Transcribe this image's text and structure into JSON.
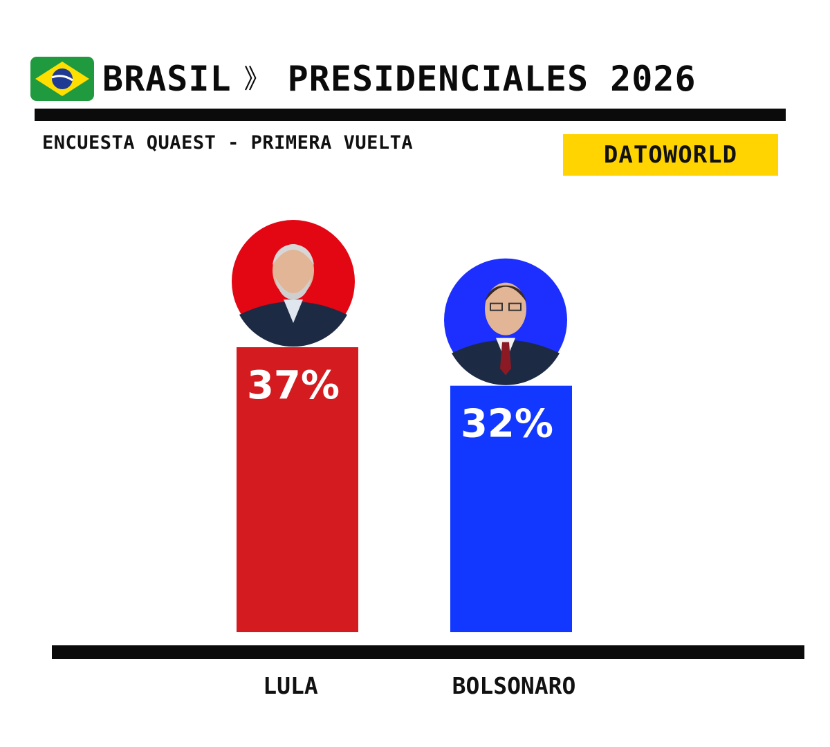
{
  "header": {
    "flag_icon": "brazil-flag-icon",
    "country": "BRASIL",
    "separator": "》",
    "title": "PRESIDENCIALES 2026"
  },
  "subtitle": "ENCUESTA QUAEST - PRIMERA VUELTA",
  "brand": "DATOWORLD",
  "colors": {
    "flag_green": "#1f9a3f",
    "flag_yellow": "#fedf00",
    "flag_blue": "#1f3a93",
    "brand_yellow": "#ffd400"
  },
  "chart_data": {
    "type": "bar",
    "categories": [
      "LULA",
      "BOLSONARO"
    ],
    "values": [
      37,
      32
    ],
    "value_labels": [
      "37%",
      "32%"
    ],
    "colors": [
      "#d41b1f",
      "#1237ff"
    ],
    "avatar_colors": [
      "#e30613",
      "#1c2fff"
    ],
    "avatar_icons": [
      "lula-portrait-icon",
      "bolsonaro-portrait-icon"
    ],
    "ylim": [
      0,
      37
    ]
  }
}
